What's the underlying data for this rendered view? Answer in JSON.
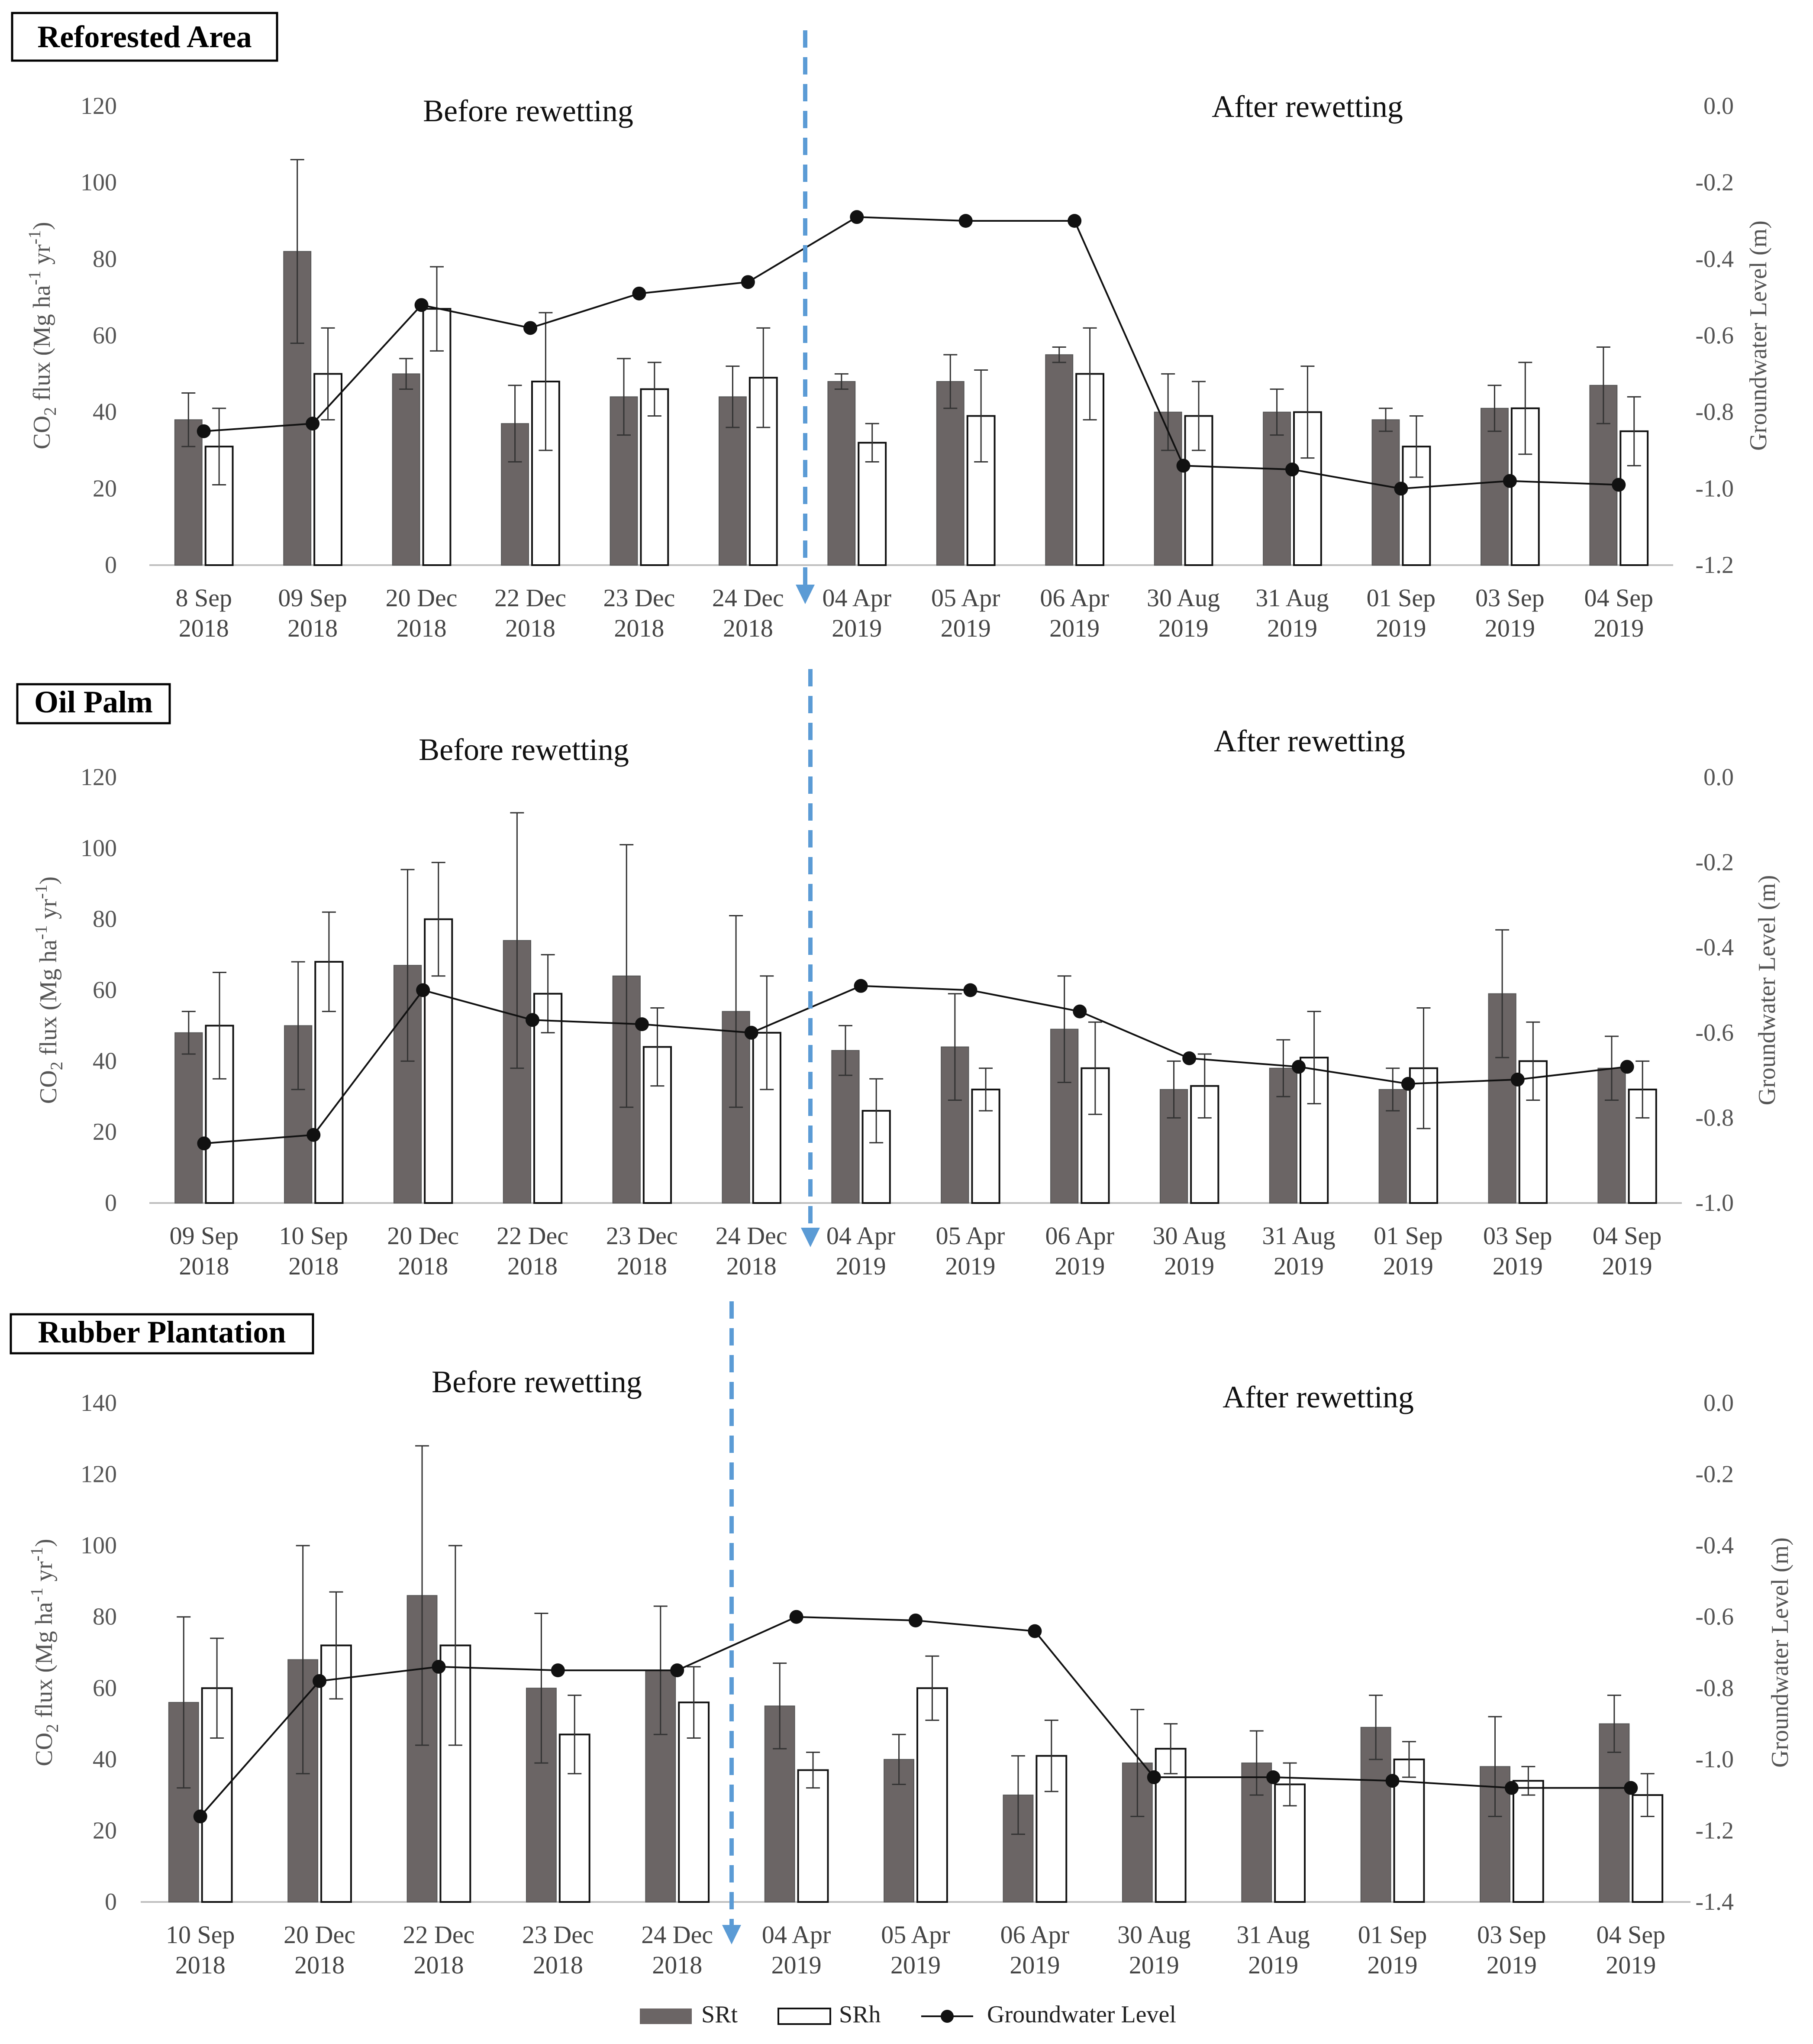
{
  "chart_data": [
    {
      "type": "bar",
      "title": "Reforested Area",
      "categories": [
        [
          "8 Sep",
          "2018"
        ],
        [
          "09 Sep",
          "2018"
        ],
        [
          "20 Dec",
          "2018"
        ],
        [
          "22 Dec",
          "2018"
        ],
        [
          "23 Dec",
          "2018"
        ],
        [
          "24 Dec",
          "2018"
        ],
        [
          "04 Apr",
          "2019"
        ],
        [
          "05 Apr",
          "2019"
        ],
        [
          "06 Apr",
          "2019"
        ],
        [
          "30 Aug",
          "2019"
        ],
        [
          "31 Aug",
          "2019"
        ],
        [
          "01 Sep",
          "2019"
        ],
        [
          "03 Sep",
          "2019"
        ],
        [
          "04 Sep",
          "2019"
        ]
      ],
      "ylabel": "CO2 flux (Mg ha-1 yr-1)",
      "y2label": "Groundwater Level (m)",
      "ylim": [
        0,
        120
      ],
      "yticks": [
        0,
        20,
        40,
        60,
        80,
        100,
        120
      ],
      "y2lim": [
        -1.2,
        0.0
      ],
      "y2ticks": [
        "-1.2",
        "-1.0",
        "-0.8",
        "-0.6",
        "-0.4",
        "-0.2",
        "0.0"
      ],
      "annotations": {
        "before": "Before rewetting",
        "after": "After rewetting"
      },
      "rewet_after_index": 5,
      "series": [
        {
          "name": "SRt",
          "values": [
            38,
            82,
            50,
            37,
            44,
            44,
            48,
            48,
            55,
            40,
            40,
            38,
            41,
            47
          ],
          "errors": [
            7,
            24,
            4,
            10,
            10,
            8,
            2,
            7,
            2,
            10,
            6,
            3,
            6,
            10
          ]
        },
        {
          "name": "SRh",
          "values": [
            31,
            50,
            67,
            48,
            46,
            49,
            32,
            39,
            50,
            39,
            40,
            31,
            41,
            35
          ],
          "errors": [
            10,
            12,
            11,
            18,
            7,
            13,
            5,
            12,
            12,
            9,
            12,
            8,
            12,
            9
          ]
        },
        {
          "name": "Groundwater Level",
          "values": [
            -0.85,
            -0.83,
            -0.52,
            -0.58,
            -0.49,
            -0.46,
            -0.29,
            -0.3,
            -0.3,
            -0.94,
            -0.95,
            -1.0,
            -0.98,
            -0.99
          ]
        }
      ]
    },
    {
      "type": "bar",
      "title": "Oil Palm",
      "categories": [
        [
          "09 Sep",
          "2018"
        ],
        [
          "10 Sep",
          "2018"
        ],
        [
          "20 Dec",
          "2018"
        ],
        [
          "22 Dec",
          "2018"
        ],
        [
          "23 Dec",
          "2018"
        ],
        [
          "24 Dec",
          "2018"
        ],
        [
          "04 Apr",
          "2019"
        ],
        [
          "05 Apr",
          "2019"
        ],
        [
          "06 Apr",
          "2019"
        ],
        [
          "30 Aug",
          "2019"
        ],
        [
          "31 Aug",
          "2019"
        ],
        [
          "01 Sep",
          "2019"
        ],
        [
          "03 Sep",
          "2019"
        ],
        [
          "04 Sep",
          "2019"
        ]
      ],
      "ylabel": "CO2 flux (Mg ha-1 yr-1)",
      "y2label": "Groundwater Level (m)",
      "ylim": [
        0,
        120
      ],
      "yticks": [
        0,
        20,
        40,
        60,
        80,
        100,
        120
      ],
      "y2lim": [
        -1.0,
        0.0
      ],
      "y2ticks": [
        "-1.0",
        "-0.8",
        "-0.6",
        "-0.4",
        "-0.2",
        "0.0"
      ],
      "annotations": {
        "before": "Before rewetting",
        "after": "After rewetting"
      },
      "rewet_after_index": 5,
      "series": [
        {
          "name": "SRt",
          "values": [
            48,
            50,
            67,
            74,
            64,
            54,
            43,
            44,
            49,
            32,
            38,
            32,
            59,
            38
          ],
          "errors": [
            6,
            18,
            27,
            36,
            37,
            27,
            7,
            15,
            15,
            8,
            8,
            6,
            18,
            9
          ]
        },
        {
          "name": "SRh",
          "values": [
            50,
            68,
            80,
            59,
            44,
            48,
            26,
            32,
            38,
            33,
            41,
            38,
            40,
            32
          ],
          "errors": [
            15,
            14,
            16,
            11,
            11,
            16,
            9,
            6,
            13,
            9,
            13,
            17,
            11,
            8
          ]
        },
        {
          "name": "Groundwater Level",
          "values": [
            -0.86,
            -0.84,
            -0.5,
            -0.57,
            -0.58,
            -0.6,
            -0.49,
            -0.5,
            -0.55,
            -0.66,
            -0.68,
            -0.72,
            -0.71,
            -0.68
          ]
        }
      ]
    },
    {
      "type": "bar",
      "title": "Rubber Plantation",
      "categories": [
        [
          "10 Sep",
          "2018"
        ],
        [
          "20 Dec",
          "2018"
        ],
        [
          "22 Dec",
          "2018"
        ],
        [
          "23 Dec",
          "2018"
        ],
        [
          "24 Dec",
          "2018"
        ],
        [
          "04 Apr",
          "2019"
        ],
        [
          "05 Apr",
          "2019"
        ],
        [
          "06 Apr",
          "2019"
        ],
        [
          "30 Aug",
          "2019"
        ],
        [
          "31 Aug",
          "2019"
        ],
        [
          "01 Sep",
          "2019"
        ],
        [
          "03 Sep",
          "2019"
        ],
        [
          "04 Sep",
          "2019"
        ]
      ],
      "ylabel": "CO2 flux (Mg ha-1 yr-1)",
      "y2label": "Groundwater Level (m)",
      "ylim": [
        0,
        140
      ],
      "yticks": [
        0,
        20,
        40,
        60,
        80,
        100,
        120,
        140
      ],
      "y2lim": [
        -1.4,
        0.0
      ],
      "y2ticks": [
        "-1.4",
        "-1.2",
        "-1.0",
        "-0.8",
        "-0.6",
        "-0.4",
        "-0.2",
        "0.0"
      ],
      "annotations": {
        "before": "Before rewetting",
        "after": "After rewetting"
      },
      "rewet_after_index": 4,
      "series": [
        {
          "name": "SRt",
          "values": [
            56,
            68,
            86,
            60,
            65,
            55,
            40,
            30,
            39,
            39,
            49,
            38,
            50
          ],
          "errors": [
            24,
            32,
            42,
            21,
            18,
            12,
            7,
            11,
            15,
            9,
            9,
            14,
            8
          ]
        },
        {
          "name": "SRh",
          "values": [
            60,
            72,
            72,
            47,
            56,
            37,
            60,
            41,
            43,
            33,
            40,
            34,
            30
          ],
          "errors": [
            14,
            15,
            28,
            11,
            10,
            5,
            9,
            10,
            7,
            6,
            5,
            4,
            6
          ]
        },
        {
          "name": "Groundwater Level",
          "values": [
            -1.16,
            -0.78,
            -0.74,
            -0.75,
            -0.75,
            -0.6,
            -0.61,
            -0.64,
            -1.05,
            -1.05,
            -1.06,
            -1.08,
            -1.08
          ]
        }
      ]
    }
  ],
  "legend": {
    "items": [
      "SRt",
      "SRh",
      "Groundwater Level"
    ],
    "placement": "bottom-center"
  },
  "colors": {
    "srt": "#6b6565",
    "srh": "#ffffff",
    "line": "#111111",
    "arrow": "#5b9bd5",
    "axis": "#bfbfbf"
  }
}
